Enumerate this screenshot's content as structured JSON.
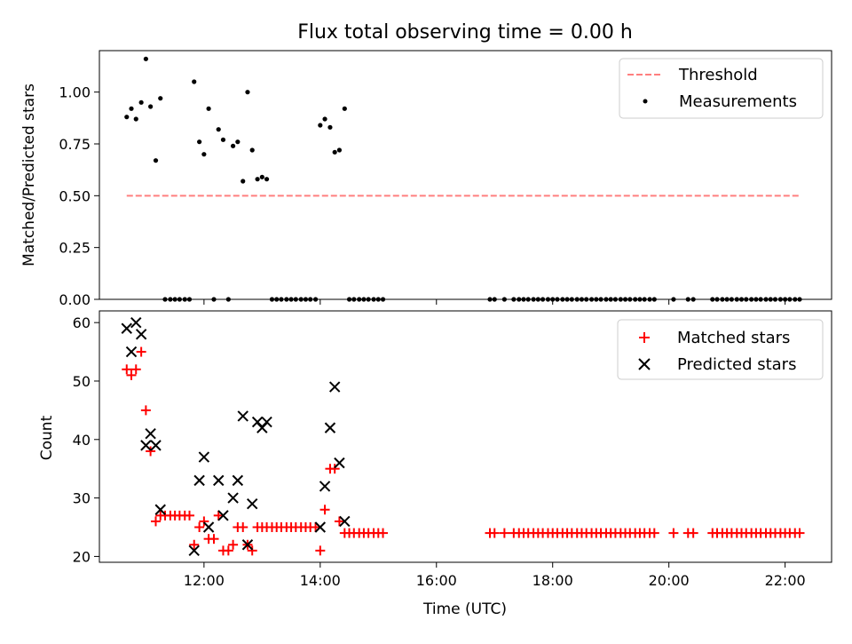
{
  "chart_data": [
    {
      "type": "scatter",
      "title": "Flux total observing time = 0.00 h",
      "xlabel": "",
      "ylabel": "Matched/Predicted stars",
      "ylim": [
        0,
        1.2
      ],
      "yticks": [
        "0.00",
        "0.25",
        "0.50",
        "0.75",
        "1.00"
      ],
      "yticks_values": [
        0,
        0.25,
        0.5,
        0.75,
        1.0
      ],
      "xlim": [
        10.2,
        22.8
      ],
      "legend_position": "top-right",
      "threshold": {
        "name": "Threshold",
        "value": 0.5,
        "x": [
          10.67,
          22.25
        ],
        "color": "#ff7f7f"
      },
      "series": [
        {
          "name": "Measurements",
          "marker": "dot",
          "color": "#000000",
          "points": [
            [
              10.67,
              0.88
            ],
            [
              10.75,
              0.92
            ],
            [
              10.83,
              0.87
            ],
            [
              10.92,
              0.95
            ],
            [
              11.0,
              1.16
            ],
            [
              11.08,
              0.93
            ],
            [
              11.17,
              0.67
            ],
            [
              11.25,
              0.97
            ],
            [
              11.83,
              1.05
            ],
            [
              11.92,
              0.76
            ],
            [
              12.0,
              0.7
            ],
            [
              12.08,
              0.92
            ],
            [
              12.25,
              0.82
            ],
            [
              12.33,
              0.77
            ],
            [
              12.5,
              0.74
            ],
            [
              12.58,
              0.76
            ],
            [
              12.67,
              0.57
            ],
            [
              12.75,
              1.0
            ],
            [
              12.83,
              0.72
            ],
            [
              12.92,
              0.58
            ],
            [
              13.0,
              0.59
            ],
            [
              13.08,
              0.58
            ],
            [
              14.0,
              0.84
            ],
            [
              14.08,
              0.87
            ],
            [
              14.17,
              0.83
            ],
            [
              14.25,
              0.71
            ],
            [
              14.33,
              0.72
            ],
            [
              14.42,
              0.92
            ],
            [
              11.33,
              0
            ],
            [
              11.42,
              0
            ],
            [
              11.5,
              0
            ],
            [
              11.58,
              0
            ],
            [
              11.67,
              0
            ],
            [
              11.75,
              0
            ],
            [
              12.17,
              0
            ],
            [
              12.42,
              0
            ],
            [
              13.17,
              0
            ],
            [
              13.25,
              0
            ],
            [
              13.33,
              0
            ],
            [
              13.42,
              0
            ],
            [
              13.5,
              0
            ],
            [
              13.58,
              0
            ],
            [
              13.67,
              0
            ],
            [
              13.75,
              0
            ],
            [
              13.83,
              0
            ],
            [
              13.92,
              0
            ],
            [
              14.5,
              0
            ],
            [
              14.58,
              0
            ],
            [
              14.67,
              0
            ],
            [
              14.75,
              0
            ],
            [
              14.83,
              0
            ],
            [
              14.92,
              0
            ],
            [
              15.0,
              0
            ],
            [
              15.08,
              0
            ],
            [
              16.92,
              0
            ],
            [
              17.0,
              0
            ],
            [
              17.17,
              0
            ],
            [
              17.33,
              0
            ],
            [
              17.42,
              0
            ],
            [
              17.5,
              0
            ],
            [
              17.58,
              0
            ],
            [
              17.67,
              0
            ],
            [
              17.75,
              0
            ],
            [
              17.83,
              0
            ],
            [
              17.92,
              0
            ],
            [
              18.0,
              0
            ],
            [
              18.08,
              0
            ],
            [
              18.17,
              0
            ],
            [
              18.25,
              0
            ],
            [
              18.33,
              0
            ],
            [
              18.42,
              0
            ],
            [
              18.5,
              0
            ],
            [
              18.58,
              0
            ],
            [
              18.67,
              0
            ],
            [
              18.75,
              0
            ],
            [
              18.83,
              0
            ],
            [
              18.92,
              0
            ],
            [
              19.0,
              0
            ],
            [
              19.08,
              0
            ],
            [
              19.17,
              0
            ],
            [
              19.25,
              0
            ],
            [
              19.33,
              0
            ],
            [
              19.42,
              0
            ],
            [
              19.5,
              0
            ],
            [
              19.58,
              0
            ],
            [
              19.67,
              0
            ],
            [
              19.75,
              0
            ],
            [
              20.08,
              0
            ],
            [
              20.33,
              0
            ],
            [
              20.42,
              0
            ],
            [
              20.75,
              0
            ],
            [
              20.83,
              0
            ],
            [
              20.92,
              0
            ],
            [
              21.0,
              0
            ],
            [
              21.08,
              0
            ],
            [
              21.17,
              0
            ],
            [
              21.25,
              0
            ],
            [
              21.33,
              0
            ],
            [
              21.42,
              0
            ],
            [
              21.5,
              0
            ],
            [
              21.58,
              0
            ],
            [
              21.67,
              0
            ],
            [
              21.75,
              0
            ],
            [
              21.83,
              0
            ],
            [
              21.92,
              0
            ],
            [
              22.0,
              0
            ],
            [
              22.08,
              0
            ],
            [
              22.17,
              0
            ],
            [
              22.25,
              0
            ]
          ]
        }
      ]
    },
    {
      "type": "scatter",
      "title": "",
      "xlabel": "Time (UTC)",
      "ylabel": "Count",
      "ylim": [
        19,
        62
      ],
      "yticks": [
        "20",
        "30",
        "40",
        "50",
        "60"
      ],
      "yticks_values": [
        20,
        30,
        40,
        50,
        60
      ],
      "xlim": [
        10.2,
        22.8
      ],
      "xticks": [
        "12:00",
        "14:00",
        "16:00",
        "18:00",
        "20:00",
        "22:00"
      ],
      "xticks_values": [
        12,
        14,
        16,
        18,
        20,
        22
      ],
      "legend_position": "top-right",
      "series": [
        {
          "name": "Matched stars",
          "marker": "plus",
          "color": "#ff0000",
          "points": [
            [
              10.67,
              52
            ],
            [
              10.75,
              51
            ],
            [
              10.83,
              52
            ],
            [
              10.92,
              55
            ],
            [
              11.0,
              45
            ],
            [
              11.08,
              38
            ],
            [
              11.17,
              26
            ],
            [
              11.25,
              27
            ],
            [
              11.33,
              27
            ],
            [
              11.42,
              27
            ],
            [
              11.5,
              27
            ],
            [
              11.58,
              27
            ],
            [
              11.67,
              27
            ],
            [
              11.75,
              27
            ],
            [
              11.83,
              22
            ],
            [
              11.92,
              25
            ],
            [
              12.0,
              26
            ],
            [
              12.08,
              23
            ],
            [
              12.17,
              23
            ],
            [
              12.25,
              27
            ],
            [
              12.33,
              21
            ],
            [
              12.42,
              21
            ],
            [
              12.5,
              22
            ],
            [
              12.58,
              25
            ],
            [
              12.67,
              25
            ],
            [
              12.75,
              22
            ],
            [
              12.83,
              21
            ],
            [
              12.92,
              25
            ],
            [
              13.0,
              25
            ],
            [
              13.08,
              25
            ],
            [
              13.17,
              25
            ],
            [
              13.25,
              25
            ],
            [
              13.33,
              25
            ],
            [
              13.42,
              25
            ],
            [
              13.5,
              25
            ],
            [
              13.58,
              25
            ],
            [
              13.67,
              25
            ],
            [
              13.75,
              25
            ],
            [
              13.83,
              25
            ],
            [
              13.92,
              25
            ],
            [
              14.0,
              21
            ],
            [
              14.08,
              28
            ],
            [
              14.17,
              35
            ],
            [
              14.25,
              35
            ],
            [
              14.33,
              26
            ],
            [
              14.42,
              24
            ],
            [
              14.5,
              24
            ],
            [
              14.58,
              24
            ],
            [
              14.67,
              24
            ],
            [
              14.75,
              24
            ],
            [
              14.83,
              24
            ],
            [
              14.92,
              24
            ],
            [
              15.0,
              24
            ],
            [
              15.08,
              24
            ],
            [
              16.92,
              24
            ],
            [
              17.0,
              24
            ],
            [
              17.17,
              24
            ],
            [
              17.33,
              24
            ],
            [
              17.42,
              24
            ],
            [
              17.5,
              24
            ],
            [
              17.58,
              24
            ],
            [
              17.67,
              24
            ],
            [
              17.75,
              24
            ],
            [
              17.83,
              24
            ],
            [
              17.92,
              24
            ],
            [
              18.0,
              24
            ],
            [
              18.08,
              24
            ],
            [
              18.17,
              24
            ],
            [
              18.25,
              24
            ],
            [
              18.33,
              24
            ],
            [
              18.42,
              24
            ],
            [
              18.5,
              24
            ],
            [
              18.58,
              24
            ],
            [
              18.67,
              24
            ],
            [
              18.75,
              24
            ],
            [
              18.83,
              24
            ],
            [
              18.92,
              24
            ],
            [
              19.0,
              24
            ],
            [
              19.08,
              24
            ],
            [
              19.17,
              24
            ],
            [
              19.25,
              24
            ],
            [
              19.33,
              24
            ],
            [
              19.42,
              24
            ],
            [
              19.5,
              24
            ],
            [
              19.58,
              24
            ],
            [
              19.67,
              24
            ],
            [
              19.75,
              24
            ],
            [
              20.08,
              24
            ],
            [
              20.33,
              24
            ],
            [
              20.42,
              24
            ],
            [
              20.75,
              24
            ],
            [
              20.83,
              24
            ],
            [
              20.92,
              24
            ],
            [
              21.0,
              24
            ],
            [
              21.08,
              24
            ],
            [
              21.17,
              24
            ],
            [
              21.25,
              24
            ],
            [
              21.33,
              24
            ],
            [
              21.42,
              24
            ],
            [
              21.5,
              24
            ],
            [
              21.58,
              24
            ],
            [
              21.67,
              24
            ],
            [
              21.75,
              24
            ],
            [
              21.83,
              24
            ],
            [
              21.92,
              24
            ],
            [
              22.0,
              24
            ],
            [
              22.08,
              24
            ],
            [
              22.17,
              24
            ],
            [
              22.25,
              24
            ]
          ]
        },
        {
          "name": "Predicted stars",
          "marker": "x",
          "color": "#000000",
          "points": [
            [
              10.67,
              59
            ],
            [
              10.75,
              55
            ],
            [
              10.83,
              60
            ],
            [
              10.92,
              58
            ],
            [
              11.0,
              39
            ],
            [
              11.08,
              41
            ],
            [
              11.17,
              39
            ],
            [
              11.25,
              28
            ],
            [
              11.83,
              21
            ],
            [
              11.92,
              33
            ],
            [
              12.0,
              37
            ],
            [
              12.08,
              25
            ],
            [
              12.25,
              33
            ],
            [
              12.33,
              27
            ],
            [
              12.5,
              30
            ],
            [
              12.58,
              33
            ],
            [
              12.67,
              44
            ],
            [
              12.75,
              22
            ],
            [
              12.83,
              29
            ],
            [
              12.92,
              43
            ],
            [
              13.0,
              42
            ],
            [
              13.08,
              43
            ],
            [
              14.0,
              25
            ],
            [
              14.08,
              32
            ],
            [
              14.17,
              42
            ],
            [
              14.25,
              49
            ],
            [
              14.33,
              36
            ],
            [
              14.42,
              26
            ]
          ]
        }
      ]
    }
  ]
}
